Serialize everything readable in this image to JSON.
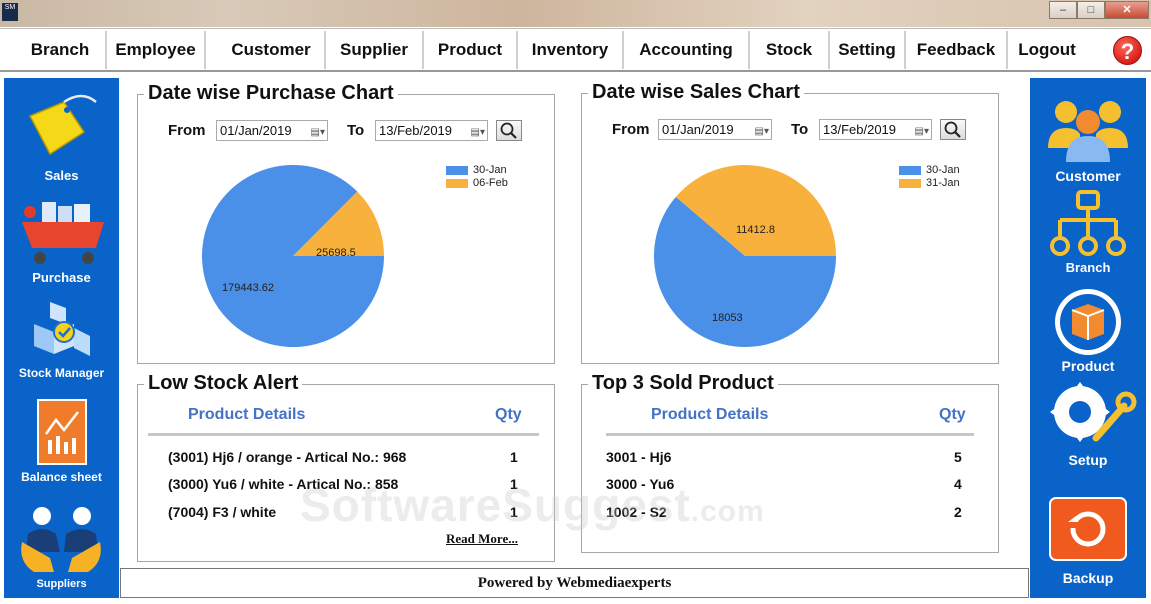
{
  "window": {
    "app_icon_text": "SM",
    "minimize": "–",
    "maximize": "□",
    "close": "✕"
  },
  "menu": [
    {
      "label": "Branch"
    },
    {
      "label": "Employee"
    },
    {
      "label": "Customer"
    },
    {
      "label": "Supplier"
    },
    {
      "label": "Product"
    },
    {
      "label": "Inventory"
    },
    {
      "label": "Accounting"
    },
    {
      "label": "Stock"
    },
    {
      "label": "Setting"
    },
    {
      "label": "Feedback"
    },
    {
      "label": "Logout"
    }
  ],
  "help_label": "?",
  "left_sidebar": [
    {
      "label": "Sales"
    },
    {
      "label": "Purchase"
    },
    {
      "label": "Stock Manager"
    },
    {
      "label": "Balance sheet"
    },
    {
      "label": "Suppliers"
    }
  ],
  "right_sidebar": [
    {
      "label": "Customer"
    },
    {
      "label": "Branch"
    },
    {
      "label": "Product"
    },
    {
      "label": "Setup"
    },
    {
      "label": "Backup"
    }
  ],
  "purchase_chart": {
    "title": "Date wise Purchase  Chart",
    "from_label": "From",
    "from_date": "01/Jan/2019",
    "to_label": "To",
    "to_date": "13/Feb/2019"
  },
  "sales_chart": {
    "title": "Date wise Sales  Chart",
    "from_label": "From",
    "from_date": "01/Jan/2019",
    "to_label": "To",
    "to_date": "13/Feb/2019"
  },
  "chart_data": [
    {
      "type": "pie",
      "title": "Date wise Purchase  Chart",
      "categories": [
        "30-Jan",
        "06-Feb"
      ],
      "values": [
        179443.62,
        25698.5
      ],
      "labels": [
        "179443.62",
        "25698.5"
      ],
      "colors": [
        "#4a90e8",
        "#f7b13c"
      ],
      "legend": "top-right"
    },
    {
      "type": "pie",
      "title": "Date wise Sales  Chart",
      "categories": [
        "30-Jan",
        "31-Jan"
      ],
      "values": [
        18053,
        11412.8
      ],
      "labels": [
        "18053",
        "11412.8"
      ],
      "colors": [
        "#4a90e8",
        "#f7b13c"
      ],
      "legend": "top-right"
    }
  ],
  "low_stock": {
    "title": "Low Stock Alert",
    "col_details": "Product Details",
    "col_qty": "Qty",
    "rows": [
      {
        "details": "(3001) Hj6 / orange - Artical No.: 968",
        "qty": "1"
      },
      {
        "details": "(3000) Yu6 / white - Artical No.: 858",
        "qty": "1"
      },
      {
        "details": "(7004) F3 / white",
        "qty": "1"
      }
    ],
    "read_more": "Read More..."
  },
  "top_sold": {
    "title": "Top 3 Sold Product",
    "col_details": "Product Details",
    "col_qty": "Qty",
    "rows": [
      {
        "details": "3001 - Hj6",
        "qty": "5"
      },
      {
        "details": "3000 - Yu6",
        "qty": "4"
      },
      {
        "details": "1002 - S2",
        "qty": "2"
      }
    ]
  },
  "footer": "Powered by Webmediaexperts",
  "watermark": {
    "main": "SoftwareSuggest",
    "suffix": ".com"
  }
}
